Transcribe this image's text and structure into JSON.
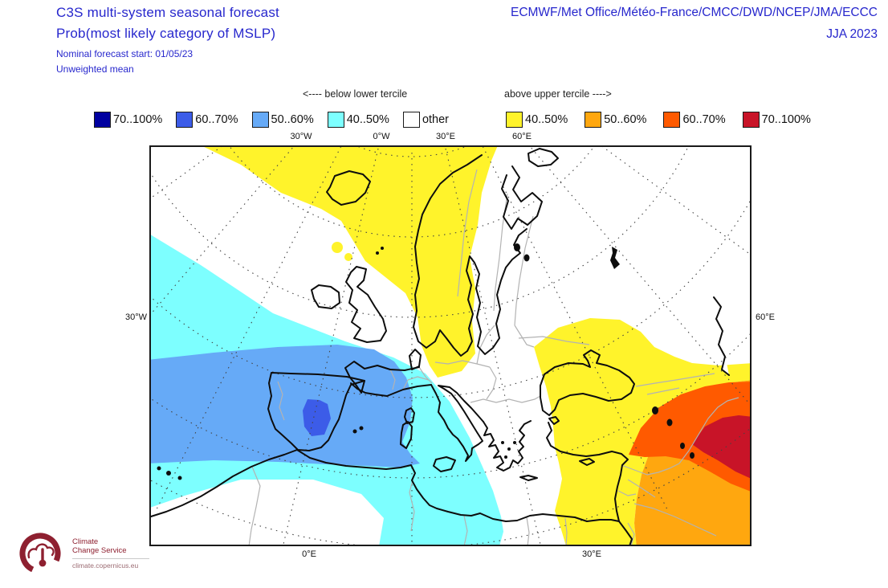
{
  "header": {
    "title_line1": "C3S multi-system seasonal forecast",
    "title_line2": "Prob(most likely category of MSLP)",
    "subtitle1": "Nominal forecast start: 01/05/23",
    "subtitle2": "Unweighted mean",
    "models": "ECMWF/Met Office/Météo-France/CMCC/DWD/NCEP/JMA/ECCC",
    "season": "JJA 2023",
    "accent_color": "#2727cd"
  },
  "legend": {
    "below_header": "<---- below lower tercile",
    "above_header": "above upper tercile ---->",
    "below_items": [
      {
        "label": "70..100%",
        "color": "#0000a0"
      },
      {
        "label": "60..70%",
        "color": "#3c5ce8"
      },
      {
        "label": "50..60%",
        "color": "#66aaf7"
      },
      {
        "label": "40..50%",
        "color": "#7dffff"
      },
      {
        "label": "other",
        "color": "#ffffff"
      }
    ],
    "above_items": [
      {
        "label": "40..50%",
        "color": "#fff32b"
      },
      {
        "label": "50..60%",
        "color": "#ffa70f"
      },
      {
        "label": "60..70%",
        "color": "#ff5a00"
      },
      {
        "label": "70..100%",
        "color": "#c81428"
      }
    ]
  },
  "map": {
    "top_labels": [
      "30°W",
      "0°W",
      "30°E",
      "60°E"
    ],
    "left_label": "30°W",
    "right_label": "60°E",
    "bottom_labels": [
      "0°E",
      "30°E"
    ],
    "palette": {
      "other": "#ffffff",
      "below_70_100": "#0000a0",
      "below_60_70": "#3c5ce8",
      "below_50_60": "#66aaf7",
      "below_40_50": "#7dffff",
      "above_40_50": "#fff32b",
      "above_50_60": "#ffa70f",
      "above_60_70": "#ff5a00",
      "above_70_100": "#c81428"
    }
  },
  "logo": {
    "line1": "Climate",
    "line2": "Change Service",
    "url": "climate.copernicus.eu",
    "color": "#8e2030"
  }
}
